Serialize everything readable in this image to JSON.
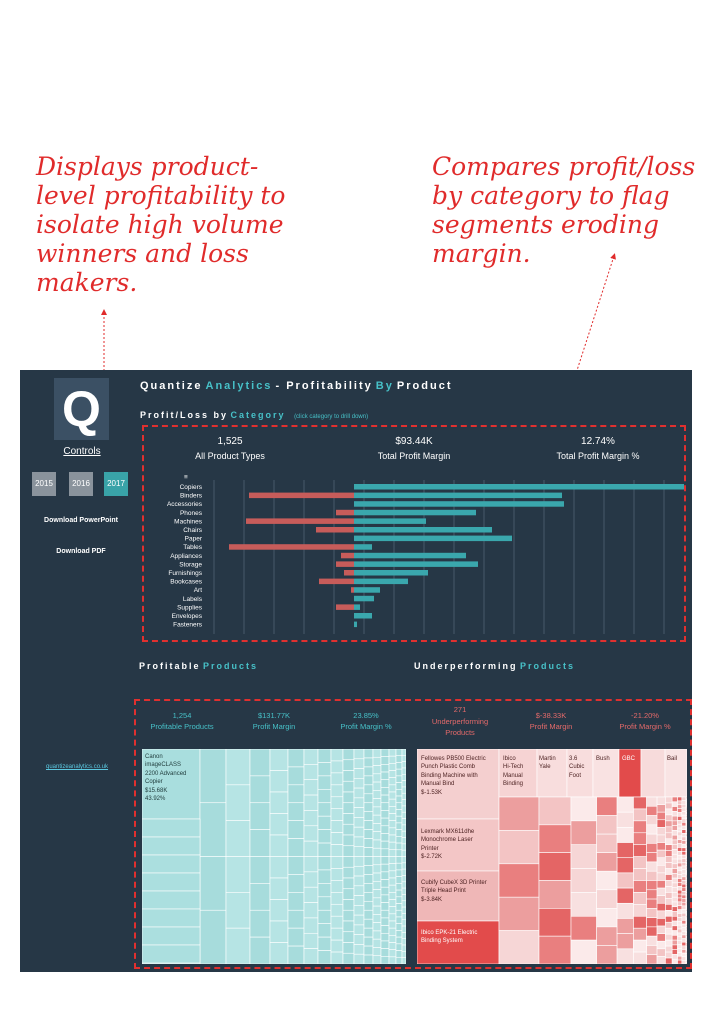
{
  "annotations": {
    "left": "Displays product-\nlevel profitability to\nisolate high volume\nwinners and loss\nmakers.",
    "right": "Compares profit/loss\nby category to flag\nsegments eroding\nmargin."
  },
  "sidebar": {
    "logo_letter": "Q",
    "controls_label": "Controls",
    "years": [
      "2015",
      "2016",
      "2017"
    ],
    "selected_year": "2017",
    "download_ppt": "Download PowerPoint",
    "download_pdf": "Download PDF",
    "site_link": "quantizeanalytics.co.uk"
  },
  "header": {
    "title_part1": "Quantize",
    "title_part2": "Analytics",
    "title_part3": "- Profitability",
    "title_part4": "By",
    "title_part5": "Product"
  },
  "profit_loss": {
    "title_part1": "Profit/Loss by",
    "title_part2": "Category",
    "note": "(click category to drill down)",
    "kpis": [
      {
        "value": "1,525",
        "label": "All Product Types"
      },
      {
        "value": "$93.44K",
        "label": "Total Profit Margin"
      },
      {
        "value": "12.74%",
        "label": "Total Profit Margin %"
      }
    ]
  },
  "chart_data": {
    "type": "bar",
    "orientation": "horizontal",
    "categories": [
      "Copiers",
      "Binders",
      "Accessories",
      "Phones",
      "Machines",
      "Chairs",
      "Paper",
      "Tables",
      "Appliances",
      "Storage",
      "Furnishings",
      "Bookcases",
      "Art",
      "Labels",
      "Supplies",
      "Envelopes",
      "Fasteners"
    ],
    "series": [
      {
        "values": [
          0,
          -105,
          0,
          -18,
          -108,
          -38,
          0,
          -125,
          -13,
          -18,
          -10,
          -35,
          -3,
          0,
          -18,
          0,
          0
        ]
      },
      {
        "values": [
          330,
          208,
          210,
          122,
          72,
          138,
          158,
          18,
          112,
          124,
          74,
          54,
          26,
          20,
          6,
          18,
          3
        ]
      }
    ],
    "colors": {
      "profit": "#3aa7ad",
      "loss": "#c75c5a"
    },
    "grid": true,
    "legend": "none"
  },
  "profitable": {
    "title_part1": "Profitable",
    "title_part2": "Products",
    "kpis": [
      {
        "value": "1,254",
        "label": "Profitable Products"
      },
      {
        "value": "$131.77K",
        "label": "Profit Margin"
      },
      {
        "value": "23.85%",
        "label": "Profit Margin %"
      }
    ],
    "top_item": "Canon\nimageCLASS\n2200 Advanced\nCopier\n$15.68K\n43.92%"
  },
  "underperforming": {
    "title_part1": "Underperforming",
    "title_part2": "Products",
    "kpis": [
      {
        "value": "271",
        "label": "Underperforming\nProducts"
      },
      {
        "value": "$-38.33K",
        "label": "Profit Margin"
      },
      {
        "value": "-21.20%",
        "label": "Profit Margin %"
      }
    ],
    "items": [
      "Fellowes PB500 Electric\nPunch Plastic Comb\nBinding Machine with\nManual Bind\n$-1.53K",
      "Ibico\nHi-Tech\nManual\nBinding",
      "Martin\nYale",
      "3.6\nCubic\nFoot",
      "Bush",
      "GBC",
      "Bail",
      "Lexmark MX611dhe\nMonochrome Laser\nPrinter\n$-2.72K",
      "Cubify CubeX 3D Printer\nTriple Head Print\n$-3.84K",
      "Ibico EPK-21 Electric\nBinding System"
    ]
  }
}
